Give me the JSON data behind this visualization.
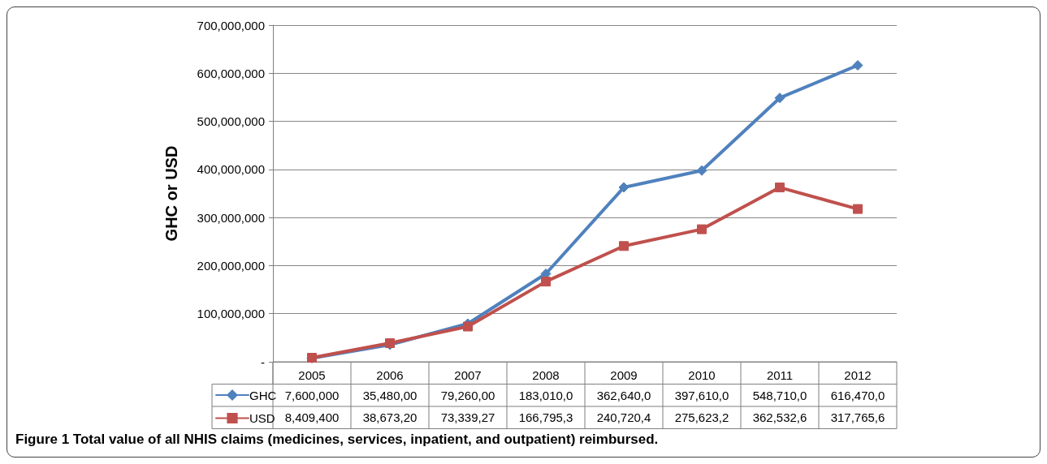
{
  "chart_data": {
    "type": "line",
    "ylabel": "GHC or USD",
    "categories": [
      "2005",
      "2006",
      "2007",
      "2008",
      "2009",
      "2010",
      "2011",
      "2012"
    ],
    "series": [
      {
        "name": "GHC",
        "color": "#4f81bd",
        "marker": "diamond",
        "values": [
          7600000,
          35480000,
          79260000,
          183010000,
          362640000,
          397610000,
          548710000,
          616470000
        ],
        "value_labels": [
          "7,600,000",
          "35,480,00",
          "79,260,00",
          "183,010,0",
          "362,640,0",
          "397,610,0",
          "548,710,0",
          "616,470,0"
        ]
      },
      {
        "name": "USD",
        "color": "#c0504d",
        "marker": "square",
        "values": [
          8409400,
          38673200,
          73339270,
          166795300,
          240720400,
          275623200,
          362532600,
          317765600
        ],
        "value_labels": [
          "8,409,400",
          "38,673,20",
          "73,339,27",
          "166,795,3",
          "240,720,4",
          "275,623,2",
          "362,532,6",
          "317,765,6"
        ]
      }
    ],
    "ylim": [
      0,
      700000000
    ],
    "yticks": [
      {
        "value": 0,
        "label": "-"
      },
      {
        "value": 100000000,
        "label": "100,000,000"
      },
      {
        "value": 200000000,
        "label": "200,000,000"
      },
      {
        "value": 300000000,
        "label": "300,000,000"
      },
      {
        "value": 400000000,
        "label": "400,000,000"
      },
      {
        "value": 500000000,
        "label": "500,000,000"
      },
      {
        "value": 600000000,
        "label": "600,000,000"
      },
      {
        "value": 700000000,
        "label": "700,000,000"
      }
    ],
    "grid": "y",
    "legend": "bottom",
    "line_style": "solid",
    "annotations": [
      "Figure 1 Total value of all NHIS claims (medicines, services, inpatient, and outpatient) reimbursed."
    ]
  }
}
